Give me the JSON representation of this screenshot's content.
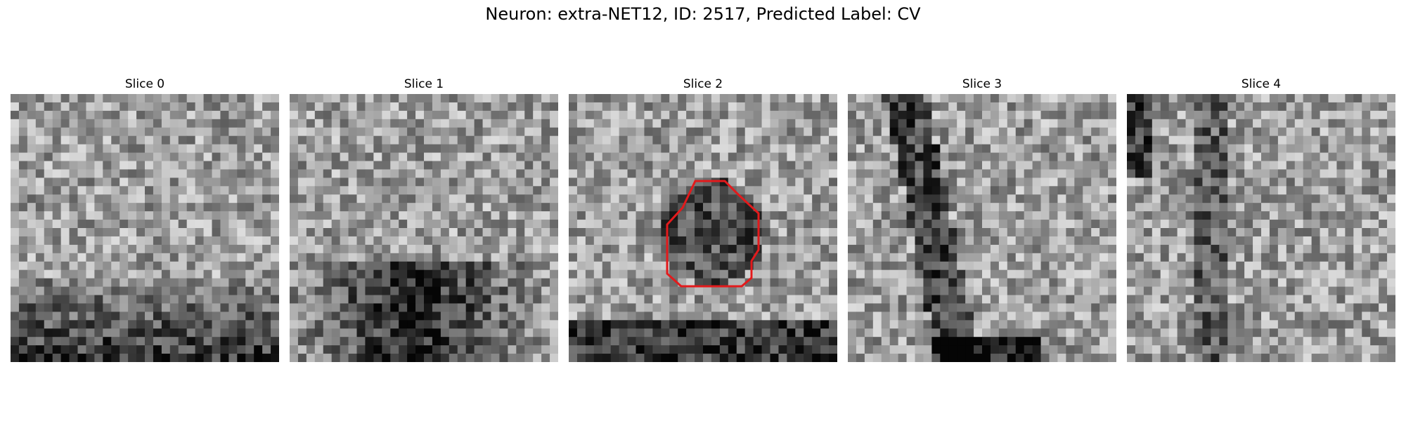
{
  "figure": {
    "title": "Neuron: extra-NET12, ID: 2517, Predicted Label: CV"
  },
  "panels": [
    {
      "title": "Slice 0",
      "seed": 11,
      "contour": false
    },
    {
      "title": "Slice 1",
      "seed": 23,
      "contour": false
    },
    {
      "title": "Slice 2",
      "seed": 37,
      "contour": true
    },
    {
      "title": "Slice 3",
      "seed": 51,
      "contour": false
    },
    {
      "title": "Slice 4",
      "seed": 67,
      "contour": false
    }
  ],
  "colors": {
    "contour": "#e31a1c"
  }
}
